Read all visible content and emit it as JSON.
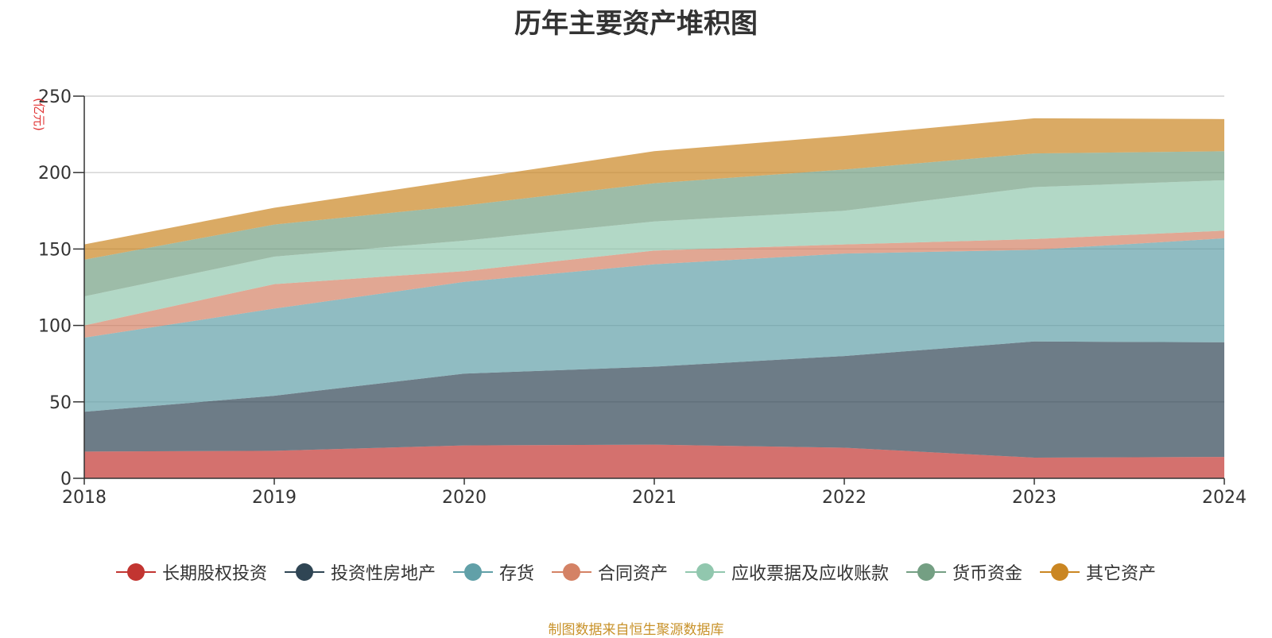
{
  "chart_data": {
    "type": "area",
    "stacked": true,
    "title": "历年主要资产堆积图",
    "ylabel": "(亿元)",
    "ylim": [
      0,
      250
    ],
    "yticks": [
      0,
      50,
      100,
      150,
      200,
      250
    ],
    "categories": [
      "2018",
      "2019",
      "2020",
      "2021",
      "2022",
      "2023",
      "2024"
    ],
    "series": [
      {
        "name": "长期股权投资",
        "color": "#c23531",
        "values": [
          17.5,
          18,
          21.5,
          22,
          20,
          13.5,
          14
        ]
      },
      {
        "name": "投资性房地产",
        "color": "#2f4554",
        "values": [
          26,
          36,
          47,
          51,
          60,
          76,
          75
        ]
      },
      {
        "name": "存货",
        "color": "#61a0a8",
        "values": [
          48.5,
          57,
          60,
          67,
          67,
          60,
          68
        ]
      },
      {
        "name": "合同资产",
        "color": "#d48265",
        "values": [
          8,
          16,
          7,
          9,
          6,
          7,
          5
        ]
      },
      {
        "name": "应收票据及应收账款",
        "color": "#91c7ae",
        "values": [
          19,
          18,
          20,
          19,
          22,
          34,
          33
        ]
      },
      {
        "name": "货币资金",
        "color": "#749f83",
        "values": [
          24,
          21,
          23,
          25,
          27,
          22,
          19
        ]
      },
      {
        "name": "其它资产",
        "color": "#ca8622",
        "values": [
          10,
          11,
          17,
          21,
          22,
          23,
          21
        ]
      }
    ],
    "grid": true,
    "legend_position": "bottom",
    "source_note": "制图数据来自恒生聚源数据库"
  }
}
